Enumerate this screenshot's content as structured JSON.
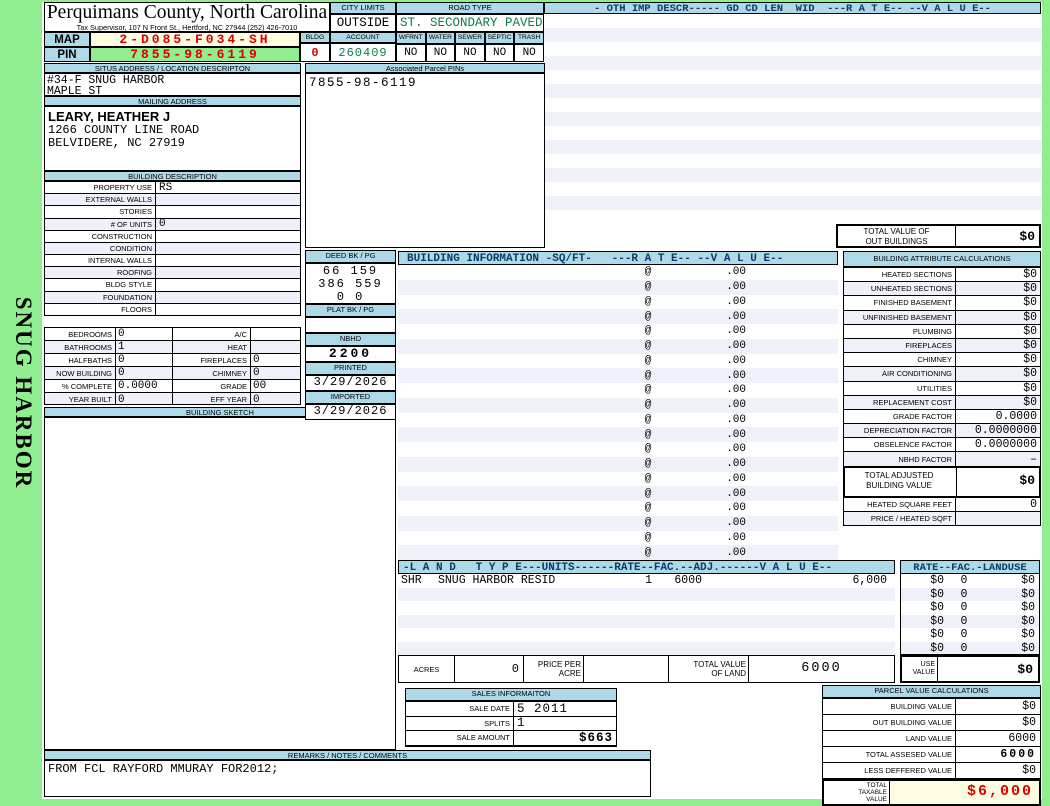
{
  "sidebar": {
    "label": "SNUG HARBOR"
  },
  "header": {
    "title": "Perquimans County, North Carolina",
    "subtitle": "Tax Supervisor, 107 N Front St., Hertford, NC 27944  (252) 426-7010",
    "city_limits_label": "CITY LIMITS",
    "city_limits_value": "OUTSIDE",
    "road_type_label": "ROAD TYPE",
    "road_type_value": "ST. SECONDARY PAVED",
    "map_label": "MAP",
    "map_value": "2-D085-F034-SH",
    "pin_label": "PIN",
    "pin_value": "7855-98-6119",
    "bldg_label": "BLDG",
    "bldg_value": "0",
    "account_label": "ACCOUNT",
    "account_value": "260409",
    "utilities": [
      {
        "label": "WFRNT",
        "value": "NO"
      },
      {
        "label": "WATER",
        "value": "NO"
      },
      {
        "label": "SEWER",
        "value": "NO"
      },
      {
        "label": "SEPTIC",
        "value": "NO"
      },
      {
        "label": "TRASH",
        "value": "NO"
      }
    ]
  },
  "oth_imp": {
    "header": "- OTH IMP DESCR----- GD CD LEN  WID  ---R A T E-- --V A L U E--",
    "rows": [
      "",
      "",
      "",
      "",
      "",
      "",
      "",
      "",
      "",
      "",
      "",
      "",
      "",
      "",
      ""
    ],
    "total_out_buildings_label": "TOTAL VALUE OF\nOUT BUILDINGS",
    "total_out_buildings_value": "$0"
  },
  "situs": {
    "header": "SITUS ADDRESS / LOCATION DESCRIPTON",
    "line1": "#34-F SNUG HARBOR",
    "line2": "MAPLE ST"
  },
  "associated": {
    "header": "Associated Parcel PINs",
    "pins": "7855-98-6119"
  },
  "mailing": {
    "header": "MAILING ADDRESS",
    "name": "LEARY, HEATHER J",
    "line1": "1266 COUNTY LINE ROAD",
    "line2": "BELVIDERE, NC  27919"
  },
  "building_description": {
    "header": "BUILDING DESCRIPTION",
    "rows": [
      {
        "label": "PROPERTY USE",
        "value": "RS"
      },
      {
        "label": "EXTERNAL WALLS",
        "value": ""
      },
      {
        "label": "STORIES",
        "value": ""
      },
      {
        "label": "# OF UNITS",
        "value": "0"
      },
      {
        "label": "CONSTRUCTION",
        "value": ""
      },
      {
        "label": "CONDITION",
        "value": ""
      },
      {
        "label": "INTERNAL WALLS",
        "value": ""
      },
      {
        "label": "ROOFING",
        "value": ""
      },
      {
        "label": "BLDG STYLE",
        "value": ""
      },
      {
        "label": "FOUNDATION",
        "value": ""
      },
      {
        "label": "FLOORS",
        "value": ""
      }
    ],
    "pairs": [
      {
        "l1": "BEDROOMS",
        "v1": "0",
        "l2": "A/C",
        "v2": ""
      },
      {
        "l1": "BATHROOMS",
        "v1": "1",
        "l2": "HEAT",
        "v2": ""
      },
      {
        "l1": "HALFBATHS",
        "v1": "0",
        "l2": "FIREPLACES",
        "v2": "0"
      },
      {
        "l1": "NOW BUILDING",
        "v1": "0",
        "l2": "CHIMNEY",
        "v2": "0"
      },
      {
        "l1": "% COMPLETE",
        "v1": "0.0000",
        "l2": "GRADE",
        "v2": "00"
      },
      {
        "l1": "YEAR BUILT",
        "v1": "0",
        "l2": "EFF YEAR",
        "v2": "0"
      }
    ],
    "sketch_header": "BUILDING SKETCH"
  },
  "deed_panel": {
    "deed_header": "DEED BK / PG",
    "deed_lines": [
      "66 159",
      "386 559",
      "0 0"
    ],
    "plat_header": "PLAT BK / PG",
    "plat_value": "",
    "nbhd_header": "NBHD",
    "nbhd_value": "2200",
    "printed_header": "PRINTED",
    "printed_value": "3/29/2026",
    "imported_header": "IMPORTED",
    "imported_value": "3/29/2026"
  },
  "building_info": {
    "header": "BUILDING INFORMATION -SQ/FT-   ---R A T E-- --V A L U E--",
    "rows": [
      {
        "at": "@",
        "rate": ".00"
      },
      {
        "at": "@",
        "rate": ".00"
      },
      {
        "at": "@",
        "rate": ".00"
      },
      {
        "at": "@",
        "rate": ".00"
      },
      {
        "at": "@",
        "rate": ".00"
      },
      {
        "at": "@",
        "rate": ".00"
      },
      {
        "at": "@",
        "rate": ".00"
      },
      {
        "at": "@",
        "rate": ".00"
      },
      {
        "at": "@",
        "rate": ".00"
      },
      {
        "at": "@",
        "rate": ".00"
      },
      {
        "at": "@",
        "rate": ".00"
      },
      {
        "at": "@",
        "rate": ".00"
      },
      {
        "at": "@",
        "rate": ".00"
      },
      {
        "at": "@",
        "rate": ".00"
      },
      {
        "at": "@",
        "rate": ".00"
      },
      {
        "at": "@",
        "rate": ".00"
      },
      {
        "at": "@",
        "rate": ".00"
      },
      {
        "at": "@",
        "rate": ".00"
      },
      {
        "at": "@",
        "rate": ".00"
      },
      {
        "at": "@",
        "rate": ".00"
      }
    ]
  },
  "attribute_calcs": {
    "header": "BUILDING ATTRIBUTE CALCULATIONS",
    "rows": [
      {
        "label": "HEATED SECTIONS",
        "value": "$0"
      },
      {
        "label": "UNHEATED SECTIONS",
        "value": "$0"
      },
      {
        "label": "FINISHED BASEMENT",
        "value": "$0"
      },
      {
        "label": "UNFINISHED BASEMENT",
        "value": "$0"
      },
      {
        "label": "PLUMBING",
        "value": "$0"
      },
      {
        "label": "FIREPLACES",
        "value": "$0"
      },
      {
        "label": "CHIMNEY",
        "value": "$0"
      },
      {
        "label": "AIR CONDITIONING",
        "value": "$0"
      },
      {
        "label": "UTILITIES",
        "value": "$0"
      },
      {
        "label": "REPLACEMENT COST",
        "value": "$0"
      },
      {
        "label": "GRADE FACTOR",
        "value": "0.0000"
      },
      {
        "label": "DEPRECIATION FACTOR",
        "value": "0.0000000"
      },
      {
        "label": "OBSELENCE FACTOR",
        "value": "0.0000000"
      },
      {
        "label": "NBHD FACTOR",
        "value": "–"
      }
    ],
    "total_adjusted_label": "TOTAL ADJUSTED\nBUILDING VALUE",
    "total_adjusted_value": "$0",
    "extra_rows": [
      {
        "label": "HEATED SQUARE FEET",
        "value": "0"
      },
      {
        "label": "PRICE / HEATED SQFT",
        "value": ""
      }
    ]
  },
  "land": {
    "header": "-L A N D   T Y P E---UNITS------RATE--FAC.--ADJ.------V A L U E--",
    "rows": [
      {
        "code": "SHR",
        "desc": "SNUG HARBOR RESID",
        "units": "1",
        "rate": "6000",
        "fac": "",
        "adj": "",
        "value": "6,000"
      },
      {
        "code": "",
        "desc": "",
        "units": "",
        "rate": "",
        "fac": "",
        "adj": "",
        "value": ""
      },
      {
        "code": "",
        "desc": "",
        "units": "",
        "rate": "",
        "fac": "",
        "adj": "",
        "value": ""
      },
      {
        "code": "",
        "desc": "",
        "units": "",
        "rate": "",
        "fac": "",
        "adj": "",
        "value": ""
      },
      {
        "code": "",
        "desc": "",
        "units": "",
        "rate": "",
        "fac": "",
        "adj": "",
        "value": ""
      },
      {
        "code": "",
        "desc": "",
        "units": "",
        "rate": "",
        "fac": "",
        "adj": "",
        "value": ""
      }
    ],
    "acres_label": "ACRES",
    "acres_value": "0",
    "price_per_acre_label": "PRICE PER\nACRE",
    "price_per_acre_value": "",
    "total_land_label": "TOTAL VALUE\nOF LAND",
    "total_land_value": "6000"
  },
  "landuse": {
    "header": "RATE--FAC.-LANDUSE",
    "rows": [
      {
        "rate": "$0",
        "fac": "0",
        "value": "$0"
      },
      {
        "rate": "$0",
        "fac": "0",
        "value": "$0"
      },
      {
        "rate": "$0",
        "fac": "0",
        "value": "$0"
      },
      {
        "rate": "$0",
        "fac": "0",
        "value": "$0"
      },
      {
        "rate": "$0",
        "fac": "0",
        "value": "$0"
      },
      {
        "rate": "$0",
        "fac": "0",
        "value": "$0"
      }
    ],
    "use_value_label": "USE\nVALUE",
    "use_value": "$0"
  },
  "sales": {
    "header": "SALES INFORMAITON",
    "rows": [
      {
        "label": "SALE DATE",
        "value": "5 2011"
      },
      {
        "label": "SPLITS",
        "value": "1"
      },
      {
        "label": "SALE AMOUNT",
        "value": "$663"
      }
    ]
  },
  "parcel_calcs": {
    "header": "PARCEL VALUE CALCULATIONS",
    "rows": [
      {
        "label": "BUILDING VALUE",
        "value": "$0"
      },
      {
        "label": "OUT BUILDING VALUE",
        "value": "$0"
      },
      {
        "label": "LAND VALUE",
        "value": "6000"
      },
      {
        "label": "TOTAL ASSESED VALUE",
        "value": "6000"
      },
      {
        "label": "LESS DEFFERED VALUE",
        "value": "$0"
      }
    ],
    "total_taxable_label": "TOTAL\nTAXABLE\nVALUE",
    "total_taxable_value": "$6,000"
  },
  "remarks": {
    "header": "REMARKS / NOTES / COMMENTS",
    "text": "FROM FCL RAYFORD MMURAY FOR2012;"
  }
}
